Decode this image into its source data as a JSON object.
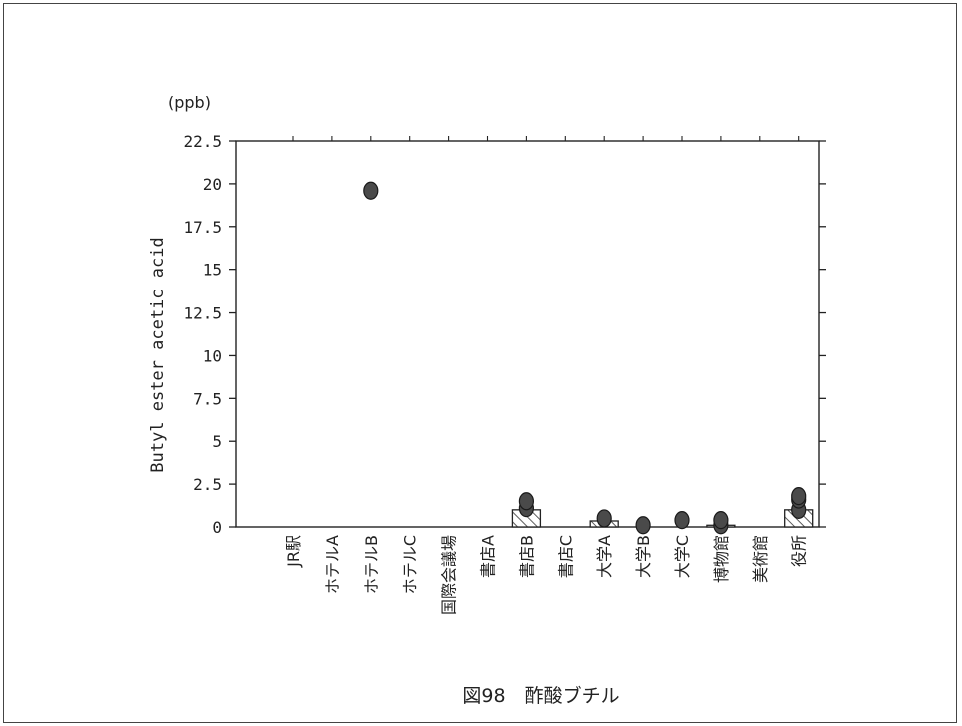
{
  "chart_data": {
    "type": "bar",
    "unit_label": "(ppb)",
    "ylabel": "Butyl ester acetic acid",
    "caption": "図98　酢酸ブチル",
    "ylim": [
      0,
      22.5
    ],
    "yticks": [
      "0",
      "2.5",
      "5",
      "7.5",
      "10",
      "12.5",
      "15",
      "17.5",
      "20",
      "22.5"
    ],
    "categories": [
      "JR駅",
      "ホテルA",
      "ホテルB",
      "ホテルC",
      "国際会議場",
      "書店A",
      "書店B",
      "書店C",
      "大学A",
      "大学B",
      "大学C",
      "博物館",
      "美術館",
      "役所"
    ],
    "values": [
      0,
      0,
      0,
      0,
      0,
      0,
      1.0,
      0,
      0.35,
      0,
      0,
      0.1,
      0,
      1.0
    ],
    "points": [
      {
        "category": "ホテルB",
        "values": [
          19.6
        ]
      },
      {
        "category": "書店B",
        "values": [
          1.1,
          1.5
        ]
      },
      {
        "category": "大学A",
        "values": [
          0.5
        ]
      },
      {
        "category": "大学B",
        "values": [
          0.1
        ]
      },
      {
        "category": "大学C",
        "values": [
          0.4
        ]
      },
      {
        "category": "博物館",
        "values": [
          0.1,
          0.4
        ]
      },
      {
        "category": "役所",
        "values": [
          1.0,
          1.6,
          1.8
        ]
      }
    ],
    "grid": false,
    "legend": "none"
  }
}
